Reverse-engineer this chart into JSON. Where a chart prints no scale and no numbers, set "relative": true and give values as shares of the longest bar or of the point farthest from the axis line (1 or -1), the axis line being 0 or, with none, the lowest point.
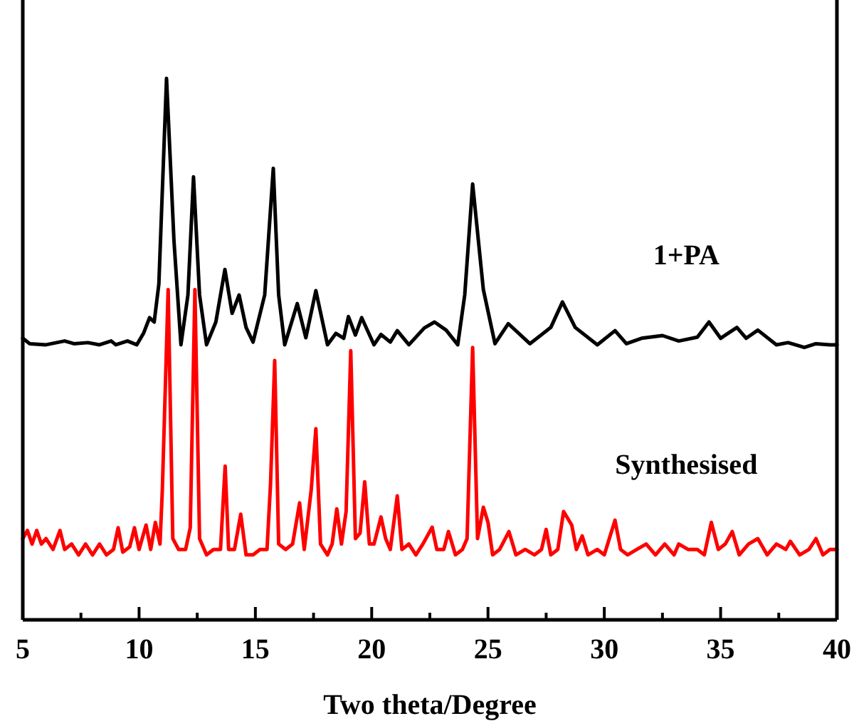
{
  "chart_data": {
    "type": "line",
    "xlabel": "Two theta/Degree",
    "relative": true,
    "line_style": "solid",
    "xlim": [
      5,
      40
    ],
    "xticks": [
      5,
      {
        "value": 7.5,
        "label": null
      },
      10,
      {
        "value": 12.5,
        "label": null
      },
      15,
      {
        "value": 17.5,
        "label": null
      },
      20,
      {
        "value": 22.5,
        "label": null
      },
      25,
      {
        "value": 27.5,
        "label": null
      },
      30,
      {
        "value": 32.5,
        "label": null
      },
      35,
      {
        "value": 37.5,
        "label": null
      },
      40
    ],
    "series": [
      {
        "name": "1+PA",
        "color": "#000000",
        "x": [
          5.0,
          5.3,
          6.0,
          6.8,
          7.2,
          7.8,
          8.3,
          8.8,
          9.0,
          9.5,
          9.9,
          10.2,
          10.45,
          10.65,
          10.85,
          11.18,
          11.5,
          11.8,
          12.1,
          12.34,
          12.6,
          12.9,
          13.3,
          13.69,
          14.0,
          14.3,
          14.6,
          14.9,
          15.4,
          15.77,
          16.0,
          16.26,
          16.8,
          17.17,
          17.6,
          18.1,
          18.46,
          18.8,
          19.0,
          19.3,
          19.57,
          20.1,
          20.4,
          20.8,
          21.1,
          21.6,
          22.26,
          22.7,
          23.2,
          23.7,
          24.0,
          24.34,
          24.8,
          25.3,
          25.87,
          26.8,
          27.7,
          28.2,
          28.75,
          29.7,
          30.46,
          30.95,
          31.6,
          32.5,
          33.2,
          34.0,
          34.5,
          35.0,
          35.7,
          36.1,
          36.6,
          37.4,
          37.9,
          38.6,
          39.1,
          39.7,
          40.0
        ],
        "values": [
          0.52,
          0.51,
          0.508,
          0.515,
          0.51,
          0.512,
          0.508,
          0.515,
          0.508,
          0.515,
          0.508,
          0.53,
          0.558,
          0.55,
          0.62,
          1.0,
          0.7,
          0.508,
          0.6,
          0.818,
          0.6,
          0.508,
          0.55,
          0.647,
          0.566,
          0.6,
          0.54,
          0.513,
          0.6,
          0.834,
          0.6,
          0.508,
          0.584,
          0.521,
          0.608,
          0.508,
          0.529,
          0.52,
          0.56,
          0.526,
          0.558,
          0.508,
          0.527,
          0.513,
          0.534,
          0.508,
          0.539,
          0.55,
          0.535,
          0.508,
          0.6,
          0.805,
          0.61,
          0.51,
          0.547,
          0.51,
          0.54,
          0.587,
          0.54,
          0.508,
          0.534,
          0.51,
          0.52,
          0.525,
          0.515,
          0.522,
          0.55,
          0.52,
          0.54,
          0.52,
          0.535,
          0.508,
          0.512,
          0.503,
          0.51,
          0.508,
          0.508
        ]
      },
      {
        "name": "Synthesised",
        "color": "#ff0000",
        "x": [
          5.0,
          5.2,
          5.4,
          5.6,
          5.8,
          6.0,
          6.3,
          6.6,
          6.8,
          7.1,
          7.4,
          7.7,
          8.0,
          8.3,
          8.6,
          8.9,
          9.1,
          9.3,
          9.6,
          9.8,
          10.0,
          10.3,
          10.5,
          10.7,
          10.9,
          11.0,
          11.25,
          11.45,
          11.7,
          12.0,
          12.2,
          12.4,
          12.6,
          12.9,
          13.2,
          13.5,
          13.7,
          13.85,
          14.1,
          14.37,
          14.6,
          14.9,
          15.2,
          15.5,
          15.65,
          15.83,
          16.0,
          16.3,
          16.6,
          16.9,
          17.1,
          17.4,
          17.6,
          17.8,
          18.1,
          18.3,
          18.5,
          18.7,
          18.9,
          19.1,
          19.3,
          19.5,
          19.7,
          19.9,
          20.1,
          20.4,
          20.6,
          20.8,
          21.1,
          21.3,
          21.6,
          21.9,
          22.2,
          22.6,
          22.8,
          23.1,
          23.3,
          23.6,
          23.9,
          24.1,
          24.34,
          24.55,
          24.8,
          25.0,
          25.2,
          25.5,
          25.9,
          26.2,
          26.6,
          27.0,
          27.3,
          27.5,
          27.7,
          28.0,
          28.25,
          28.6,
          28.8,
          29.05,
          29.3,
          29.7,
          30.0,
          30.46,
          30.7,
          31.0,
          31.4,
          31.8,
          32.2,
          32.6,
          33.0,
          33.2,
          33.6,
          34.0,
          34.3,
          34.6,
          34.9,
          35.2,
          35.5,
          35.8,
          36.2,
          36.6,
          37.0,
          37.4,
          37.8,
          38.0,
          38.4,
          38.8,
          39.1,
          39.4,
          39.7,
          40.0
        ],
        "values": [
          0.15,
          0.165,
          0.14,
          0.165,
          0.14,
          0.15,
          0.13,
          0.165,
          0.13,
          0.14,
          0.12,
          0.14,
          0.12,
          0.14,
          0.12,
          0.13,
          0.17,
          0.125,
          0.135,
          0.17,
          0.13,
          0.175,
          0.13,
          0.18,
          0.14,
          0.24,
          0.61,
          0.15,
          0.13,
          0.13,
          0.17,
          0.61,
          0.15,
          0.12,
          0.13,
          0.13,
          0.284,
          0.13,
          0.13,
          0.195,
          0.12,
          0.12,
          0.13,
          0.13,
          0.25,
          0.479,
          0.14,
          0.13,
          0.14,
          0.216,
          0.13,
          0.24,
          0.353,
          0.14,
          0.12,
          0.14,
          0.205,
          0.14,
          0.2,
          0.497,
          0.15,
          0.16,
          0.255,
          0.14,
          0.14,
          0.19,
          0.15,
          0.13,
          0.229,
          0.13,
          0.14,
          0.12,
          0.14,
          0.171,
          0.13,
          0.13,
          0.163,
          0.12,
          0.13,
          0.15,
          0.503,
          0.15,
          0.208,
          0.18,
          0.12,
          0.13,
          0.163,
          0.12,
          0.13,
          0.12,
          0.13,
          0.167,
          0.12,
          0.13,
          0.2,
          0.175,
          0.13,
          0.155,
          0.12,
          0.13,
          0.12,
          0.184,
          0.13,
          0.12,
          0.13,
          0.14,
          0.12,
          0.14,
          0.12,
          0.14,
          0.13,
          0.13,
          0.12,
          0.18,
          0.13,
          0.14,
          0.163,
          0.12,
          0.14,
          0.15,
          0.12,
          0.14,
          0.13,
          0.145,
          0.12,
          0.13,
          0.15,
          0.12,
          0.13,
          0.13
        ]
      }
    ]
  }
}
